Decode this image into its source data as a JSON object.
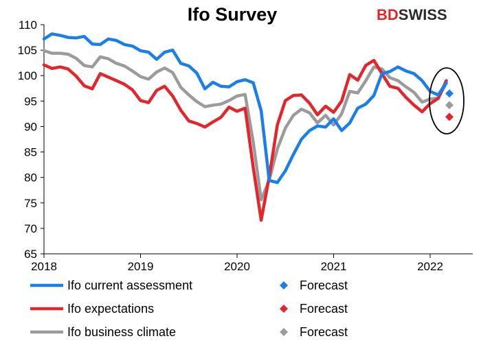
{
  "logo": {
    "part1": "BD",
    "part2": "SWISS"
  },
  "colors": {
    "current": "#1a7fe8",
    "expectations": "#e3262b",
    "climate": "#9b9b9b"
  },
  "chart_data": {
    "type": "line",
    "title": "Ifo Survey",
    "xlabel": "",
    "ylabel": "",
    "ylim": [
      65,
      110
    ],
    "yticks": [
      "65",
      "70",
      "75",
      "80",
      "85",
      "90",
      "95",
      "100",
      "105",
      "110"
    ],
    "xlim": [
      2018.0,
      2022.3
    ],
    "xticks": [
      "2018",
      "2019",
      "2020",
      "2021",
      "2022"
    ],
    "grid": false,
    "legend": "bottom",
    "series": [
      {
        "name": "Ifo current assessment",
        "color": "#1a7fe8",
        "x": [
          2018.0,
          2018.083,
          2018.167,
          2018.25,
          2018.333,
          2018.417,
          2018.5,
          2018.583,
          2018.667,
          2018.75,
          2018.833,
          2018.917,
          2019.0,
          2019.083,
          2019.167,
          2019.25,
          2019.333,
          2019.417,
          2019.5,
          2019.583,
          2019.667,
          2019.75,
          2019.833,
          2019.917,
          2020.0,
          2020.083,
          2020.167,
          2020.25,
          2020.333,
          2020.417,
          2020.5,
          2020.583,
          2020.667,
          2020.75,
          2020.833,
          2020.917,
          2021.0,
          2021.083,
          2021.167,
          2021.25,
          2021.333,
          2021.417,
          2021.5,
          2021.583,
          2021.667,
          2021.75,
          2021.833,
          2021.917,
          2022.0,
          2022.083,
          2022.167
        ],
        "values": [
          107.2,
          108.2,
          107.9,
          107.5,
          107.4,
          107.7,
          106.2,
          106.1,
          107.2,
          106.9,
          106.1,
          105.8,
          104.9,
          104.6,
          103.2,
          104.6,
          105.0,
          102.4,
          101.9,
          100.5,
          97.4,
          98.7,
          97.9,
          97.8,
          98.8,
          99.2,
          98.6,
          93.1,
          79.4,
          79.0,
          81.3,
          84.5,
          87.5,
          89.2,
          90.1,
          89.9,
          91.5,
          89.2,
          90.7,
          93.6,
          94.4,
          96.1,
          100.4,
          100.8,
          101.7,
          100.9,
          100.4,
          99.0,
          96.9,
          96.2,
          98.6
        ]
      },
      {
        "name": "Ifo expectations",
        "color": "#e3262b",
        "x": [
          2018.0,
          2018.083,
          2018.167,
          2018.25,
          2018.333,
          2018.417,
          2018.5,
          2018.583,
          2018.667,
          2018.75,
          2018.833,
          2018.917,
          2019.0,
          2019.083,
          2019.167,
          2019.25,
          2019.333,
          2019.417,
          2019.5,
          2019.583,
          2019.667,
          2019.75,
          2019.833,
          2019.917,
          2020.0,
          2020.083,
          2020.167,
          2020.25,
          2020.333,
          2020.417,
          2020.5,
          2020.583,
          2020.667,
          2020.75,
          2020.833,
          2020.917,
          2021.0,
          2021.083,
          2021.167,
          2021.25,
          2021.333,
          2021.417,
          2021.5,
          2021.583,
          2021.667,
          2021.75,
          2021.833,
          2021.917,
          2022.0,
          2022.083,
          2022.167
        ],
        "values": [
          102.1,
          101.4,
          101.7,
          101.3,
          99.9,
          98.0,
          97.4,
          100.4,
          99.7,
          99.0,
          98.3,
          97.2,
          95.1,
          94.7,
          97.1,
          97.9,
          96.0,
          93.2,
          91.1,
          90.6,
          89.9,
          90.9,
          91.8,
          93.8,
          93.0,
          93.6,
          82.0,
          71.6,
          80.1,
          90.3,
          95.1,
          96.1,
          96.2,
          94.6,
          92.3,
          94.0,
          92.8,
          95.0,
          100.2,
          99.1,
          102.0,
          103.0,
          100.4,
          97.9,
          97.5,
          95.7,
          94.2,
          92.9,
          94.5,
          95.5,
          99.0
        ]
      },
      {
        "name": "Ifo business climate",
        "color": "#9b9b9b",
        "x": [
          2018.0,
          2018.083,
          2018.167,
          2018.25,
          2018.333,
          2018.417,
          2018.5,
          2018.583,
          2018.667,
          2018.75,
          2018.833,
          2018.917,
          2019.0,
          2019.083,
          2019.167,
          2019.25,
          2019.333,
          2019.417,
          2019.5,
          2019.583,
          2019.667,
          2019.75,
          2019.833,
          2019.917,
          2020.0,
          2020.083,
          2020.167,
          2020.25,
          2020.333,
          2020.417,
          2020.5,
          2020.583,
          2020.667,
          2020.75,
          2020.833,
          2020.917,
          2021.0,
          2021.083,
          2021.167,
          2021.25,
          2021.333,
          2021.417,
          2021.5,
          2021.583,
          2021.667,
          2021.75,
          2021.833,
          2021.917,
          2022.0,
          2022.083,
          2022.167
        ],
        "values": [
          104.9,
          104.4,
          104.4,
          104.2,
          103.4,
          102.0,
          101.7,
          103.7,
          103.3,
          102.4,
          101.9,
          100.9,
          99.8,
          99.3,
          100.7,
          101.5,
          100.6,
          97.7,
          96.2,
          94.9,
          93.9,
          94.2,
          94.4,
          95.1,
          96.0,
          96.3,
          87.0,
          75.6,
          79.5,
          85.6,
          89.7,
          92.2,
          93.4,
          92.7,
          90.7,
          92.2,
          90.3,
          92.5,
          96.9,
          96.6,
          99.0,
          101.7,
          101.3,
          99.6,
          99.0,
          97.8,
          96.7,
          94.8,
          95.4,
          95.6,
          98.5
        ]
      }
    ],
    "forecasts": [
      {
        "name": "Forecast",
        "color": "#1a7fe8",
        "x": 2022.25,
        "value": 96.5
      },
      {
        "name": "Forecast",
        "color": "#e3262b",
        "x": 2022.25,
        "value": 91.9
      },
      {
        "name": "Forecast",
        "color": "#9b9b9b",
        "x": 2022.25,
        "value": 94.2
      }
    ]
  }
}
